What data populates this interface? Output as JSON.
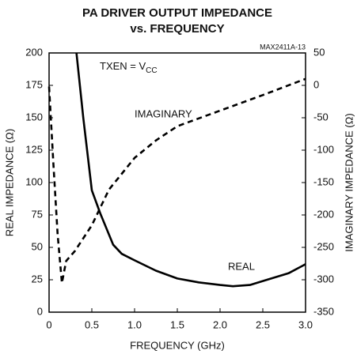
{
  "chart_data": {
    "type": "line",
    "title": "PA DRIVER OUTPUT IMPEDANCE",
    "subtitle": "vs. FREQUENCY",
    "xlabel": "FREQUENCY (GHz)",
    "ylabel": "REAL IMPEDANCE (Ω)",
    "y2label": "IMAGINARY IMPEDANCE (Ω)",
    "annotations": [
      {
        "text": "TXEN = V",
        "sub": "CC"
      },
      {
        "text": "IMAGINARY"
      },
      {
        "text": "REAL"
      },
      {
        "text": "MAX2411A-13"
      }
    ],
    "xlim": [
      0,
      3
    ],
    "xticks": [
      0,
      0.5,
      {
        "value": 1,
        "label": "1.0"
      },
      1.5,
      {
        "value": 2,
        "label": "2.0"
      },
      2.5,
      {
        "value": 3,
        "label": "3.0"
      }
    ],
    "ylim": [
      0,
      200
    ],
    "yticks": [
      0,
      25,
      50,
      75,
      100,
      125,
      150,
      175,
      200
    ],
    "y2lim": [
      -350,
      50
    ],
    "y2ticks": [
      -350,
      -300,
      -250,
      -200,
      -150,
      -100,
      -50,
      0,
      50
    ],
    "grid": false,
    "series": [
      {
        "name": "REAL",
        "color": "#000000",
        "linestyle": "solid",
        "x": [
          0.32,
          0.4,
          0.5,
          0.6,
          0.75,
          0.85,
          1.0,
          1.25,
          1.5,
          1.75,
          2.0,
          2.15,
          2.35,
          2.5,
          2.8,
          3.0
        ],
        "values": [
          200,
          150,
          94,
          76,
          52,
          45,
          40,
          32,
          26,
          23,
          21,
          20,
          21,
          24,
          30,
          37
        ]
      },
      {
        "name": "IMAGINARY",
        "color": "#000000",
        "linestyle": "dashed",
        "axis": "y2",
        "x": [
          0,
          0.05,
          0.1,
          0.15,
          0.2,
          0.3,
          0.5,
          0.7,
          1.0,
          1.25,
          1.5,
          2.0,
          2.5,
          3.0
        ],
        "values": [
          -2,
          -120,
          -230,
          -305,
          -271,
          -256,
          -216,
          -161,
          -112,
          -85,
          -63,
          -39,
          -15,
          10
        ]
      }
    ]
  }
}
